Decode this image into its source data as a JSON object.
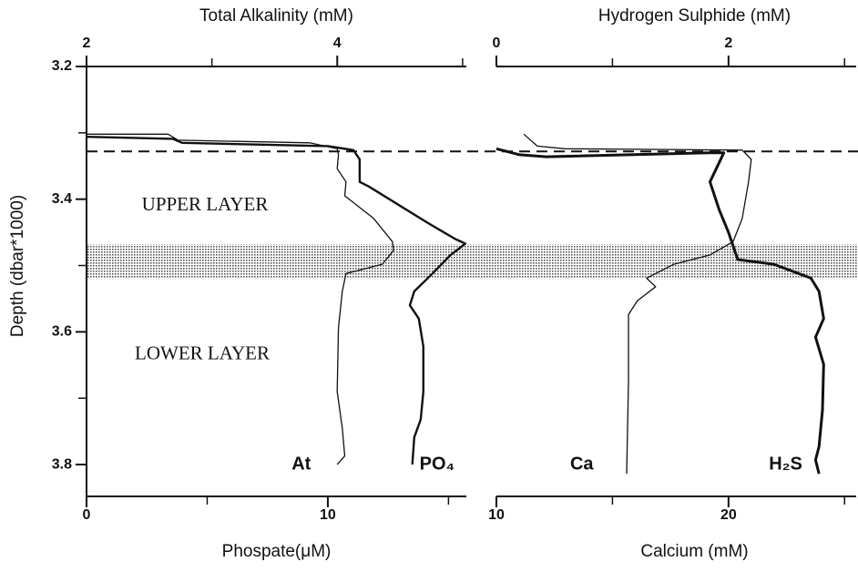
{
  "chart_data": [
    {
      "type": "line",
      "ylabel": "Depth (dbar*1000)",
      "ylim": [
        3.2,
        3.848
      ],
      "yticks": [
        3.2,
        3.4,
        3.6,
        3.8
      ],
      "yticks_minor": [
        3.3,
        3.5,
        3.7
      ],
      "y_inverted": true,
      "top_axis": {
        "label": "Total Alkalinity (mM)",
        "xlim": [
          2,
          5.03
        ],
        "xticks": [
          2,
          4
        ],
        "xticks_minor": [
          3,
          5
        ]
      },
      "bottom_axis": {
        "label": "Phospate(μM)",
        "xlim": [
          0,
          15.74
        ],
        "xticks": [
          0,
          10
        ],
        "xticks_minor": [
          5,
          15
        ]
      },
      "interface_depth": 3.328,
      "band": [
        3.468,
        3.52
      ],
      "annotations": [
        "UPPER LAYER",
        "LOWER LAYER"
      ],
      "series": [
        {
          "name": "At",
          "axis": "top",
          "color": "#111111",
          "values": [
            2.0,
            2.65,
            2.73,
            3.78,
            4.0,
            4.01,
            4.0,
            4.07,
            4.06,
            4.29,
            4.44,
            4.45,
            4.36,
            4.07,
            4.04,
            4.01,
            4.0,
            4.04,
            4.06,
            4.0
          ],
          "depth": [
            3.302,
            3.302,
            3.311,
            3.315,
            3.324,
            3.333,
            3.354,
            3.374,
            3.395,
            3.429,
            3.464,
            3.477,
            3.498,
            3.512,
            3.539,
            3.594,
            3.69,
            3.745,
            3.787,
            3.8
          ]
        },
        {
          "name": "PO₄",
          "axis": "bottom",
          "color": "#111111",
          "values": [
            0,
            3.58,
            3.96,
            10.0,
            11.06,
            11.32,
            11.32,
            11.7,
            14.15,
            15.28,
            15.7,
            15.09,
            14.34,
            13.58,
            13.4,
            13.77,
            13.96,
            13.96,
            13.85,
            13.58,
            13.5
          ],
          "depth": [
            3.306,
            3.309,
            3.315,
            3.32,
            3.326,
            3.34,
            3.374,
            3.381,
            3.436,
            3.46,
            3.467,
            3.484,
            3.512,
            3.539,
            3.56,
            3.58,
            3.622,
            3.69,
            3.732,
            3.759,
            3.8
          ]
        }
      ]
    },
    {
      "type": "line",
      "ylim": [
        3.2,
        3.848
      ],
      "y_inverted": true,
      "top_axis": {
        "label": "Hydrogen Sulphide (mM)",
        "xlim": [
          0,
          3.1
        ],
        "xticks": [
          0,
          2
        ],
        "xticks_minor": [
          1,
          3
        ]
      },
      "bottom_axis": {
        "label": "Calcium (mM)",
        "xlim": [
          10,
          25.5
        ],
        "xticks": [
          10,
          20
        ],
        "xticks_minor": [
          15,
          25
        ]
      },
      "series": [
        {
          "name": "Ca",
          "axis": "bottom",
          "color": "#111111",
          "values": [
            11.18,
            11.76,
            12.94,
            20.59,
            20.98,
            20.86,
            20.59,
            20.2,
            19.2,
            17.65,
            16.47,
            16.86,
            16.08,
            15.69,
            15.69,
            15.61
          ],
          "depth": [
            3.302,
            3.32,
            3.324,
            3.326,
            3.34,
            3.374,
            3.429,
            3.464,
            3.484,
            3.498,
            3.519,
            3.532,
            3.553,
            3.574,
            3.677,
            3.814
          ]
        },
        {
          "name": "H₂S",
          "axis": "top",
          "color": "#111111",
          "values": [
            0,
            0.2,
            0.43,
            1.84,
            1.96,
            1.84,
            1.92,
            2.0,
            2.08,
            2.39,
            2.71,
            2.78,
            2.82,
            2.75,
            2.82,
            2.81,
            2.78,
            2.75,
            2.78
          ],
          "depth": [
            3.324,
            3.333,
            3.336,
            3.33,
            3.33,
            3.374,
            3.416,
            3.45,
            3.491,
            3.498,
            3.519,
            3.539,
            3.58,
            3.608,
            3.649,
            3.718,
            3.773,
            3.793,
            3.814
          ]
        }
      ]
    }
  ]
}
